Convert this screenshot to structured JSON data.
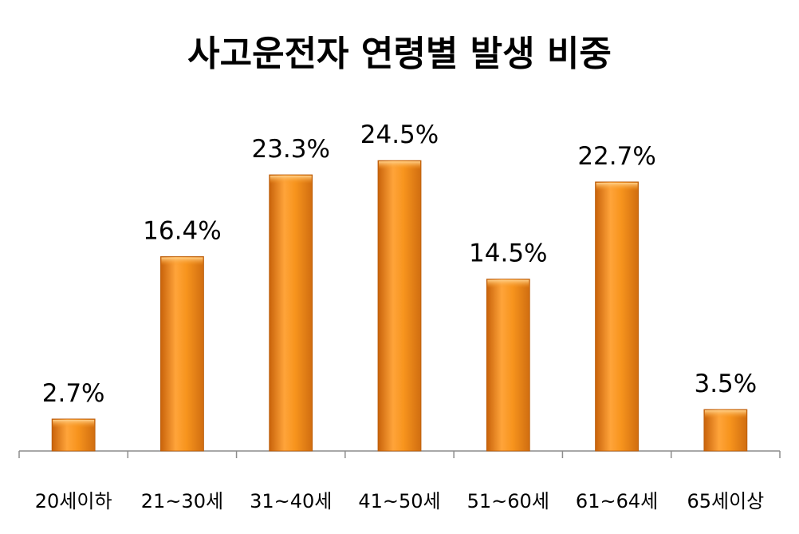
{
  "chart_data": {
    "type": "bar",
    "title": "사고운전자 연령별 발생 비중",
    "categories": [
      "20세이하",
      "21~30세",
      "31~40세",
      "41~50세",
      "51~60세",
      "61~64세",
      "65세이상"
    ],
    "values": [
      2.7,
      16.4,
      23.3,
      24.5,
      14.5,
      22.7,
      3.5
    ],
    "data_labels": [
      "2.7%",
      "16.4%",
      "23.3%",
      "24.5%",
      "14.5%",
      "22.7%",
      "3.5%"
    ],
    "unit": "%",
    "xlabel": "",
    "ylabel": "",
    "ylim": [
      0,
      30
    ],
    "grid": false,
    "legend": "none",
    "colors": {
      "bar_light": "#ffb24d",
      "bar_mid": "#f7941d",
      "bar_dark": "#c8620a",
      "axis": "#8c8c8c",
      "text": "#000000"
    }
  }
}
